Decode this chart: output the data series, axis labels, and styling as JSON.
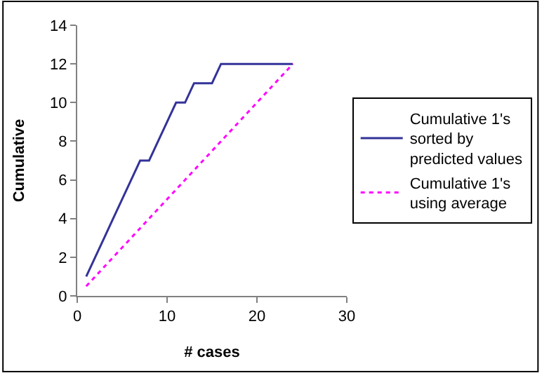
{
  "chart_data": {
    "type": "line",
    "xlabel": "# cases",
    "ylabel": "Cumulative",
    "xlim": [
      0,
      30
    ],
    "xticks": [
      0,
      10,
      20,
      30
    ],
    "ylim": [
      0,
      14
    ],
    "yticks": [
      0,
      2,
      4,
      6,
      8,
      10,
      12,
      14
    ],
    "legend": "right",
    "marker": "none",
    "series": [
      {
        "name": "Cumulative 1's sorted by predicted values",
        "color": "#333399",
        "line_style": "solid",
        "x": [
          1,
          2,
          3,
          4,
          5,
          6,
          7,
          8,
          9,
          10,
          11,
          12,
          13,
          14,
          15,
          16,
          17,
          18,
          19,
          20,
          21,
          22,
          23,
          24
        ],
        "values": [
          1,
          2,
          3,
          4,
          5,
          6,
          7,
          7,
          8,
          9,
          10,
          10,
          11,
          11,
          11,
          12,
          12,
          12,
          12,
          12,
          12,
          12,
          12,
          12
        ]
      },
      {
        "name": "Cumulative 1's using average",
        "color": "#ff00ff",
        "line_style": "dotted",
        "x": [
          1,
          24
        ],
        "values": [
          0.5,
          12
        ]
      }
    ]
  }
}
